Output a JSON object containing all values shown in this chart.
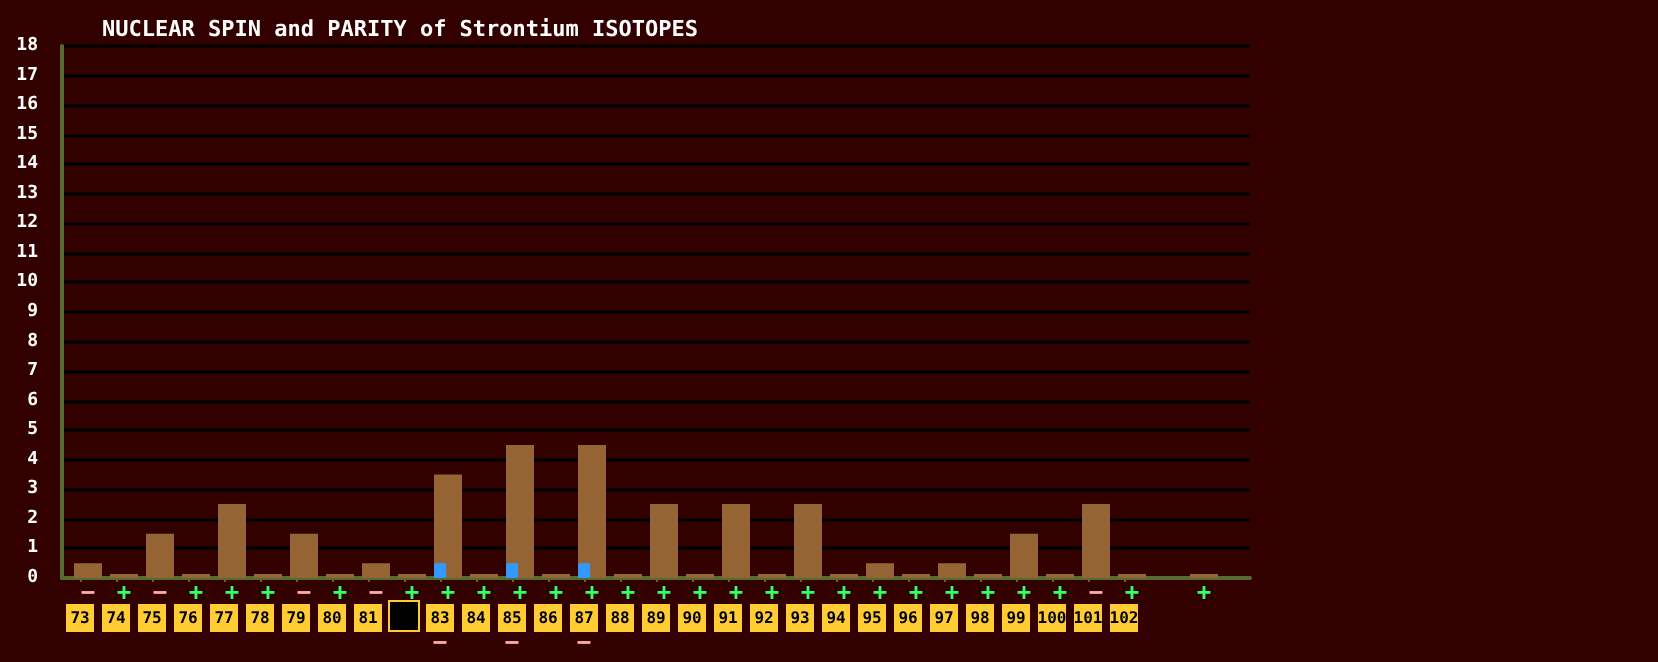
{
  "chart_data": {
    "type": "bar",
    "title": "NUCLEAR SPIN and PARITY of Strontium ISOTOPES",
    "x": [
      73,
      74,
      75,
      76,
      77,
      78,
      79,
      80,
      81,
      82,
      83,
      84,
      85,
      86,
      87,
      88,
      89,
      90,
      91,
      92,
      93,
      94,
      95,
      96,
      97,
      98,
      99,
      100,
      101,
      102,
      103,
      104
    ],
    "series": [
      {
        "color": "#956536",
        "values": [
          0.5,
          0,
          1.5,
          0,
          2.5,
          0,
          1.5,
          0,
          0.5,
          0,
          3.5,
          0,
          4.5,
          0,
          4.5,
          0,
          2.5,
          0,
          2.5,
          0,
          2.5,
          0,
          0.5,
          0,
          0.5,
          0,
          1.5,
          0,
          2.5,
          0,
          null,
          0
        ],
        "value_labels": [
          "−",
          "+",
          "−",
          "+",
          "+",
          "+",
          "−",
          "+",
          "−",
          "+",
          "+",
          "+",
          "+",
          "+",
          "+",
          "+",
          "+",
          "+",
          "+",
          "+",
          "+",
          "+",
          "+",
          "+",
          "+",
          "+",
          "+",
          "+",
          "−",
          "+",
          null,
          "+"
        ]
      },
      {
        "color": "#3399ff",
        "values": [
          null,
          null,
          null,
          null,
          null,
          null,
          null,
          null,
          null,
          null,
          0.5,
          null,
          0.5,
          null,
          0.5,
          null,
          null,
          null,
          null,
          null,
          null,
          null,
          null,
          null,
          null,
          null,
          null,
          null,
          null,
          null,
          null,
          null
        ],
        "value_labels": [
          null,
          null,
          null,
          null,
          null,
          null,
          null,
          null,
          null,
          null,
          "−",
          null,
          "−",
          null,
          "−",
          null,
          null,
          null,
          null,
          null,
          null,
          null,
          null,
          null,
          null,
          null,
          null,
          null,
          null,
          null,
          null,
          null
        ]
      }
    ],
    "xlim": [
      72.5,
      105.5
    ],
    "xticks": [
      73,
      74,
      75,
      76,
      77,
      78,
      79,
      80,
      81,
      {
        "value": 82,
        "label": null
      },
      83,
      84,
      85,
      86,
      87,
      88,
      89,
      90,
      91,
      92,
      93,
      94,
      95,
      96,
      97,
      98,
      99,
      100,
      101,
      102
    ],
    "ylim": [
      0,
      18
    ],
    "yticks": [
      0,
      1,
      2,
      3,
      4,
      5,
      6,
      7,
      8,
      9,
      10,
      11,
      12,
      13,
      14,
      15,
      16,
      17,
      18
    ],
    "grid": "y"
  }
}
